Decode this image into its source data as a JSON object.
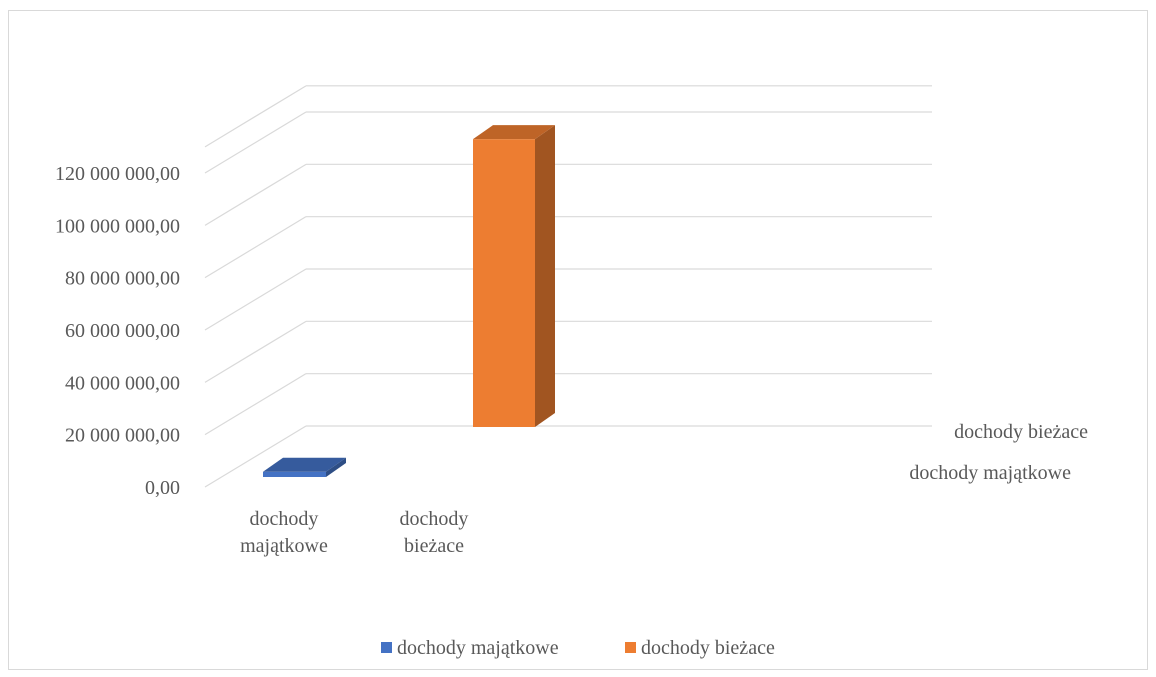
{
  "chart_data": {
    "type": "bar",
    "subtype": "3d-column",
    "categories": [
      "dochody majątkowe",
      "dochody bieżace"
    ],
    "category_label_lines": [
      [
        "dochody",
        "majątkowe"
      ],
      [
        "dochody",
        "bieżace"
      ]
    ],
    "series": [
      {
        "name": "dochody majątkowe",
        "category": "dochody majątkowe",
        "value": 2000000,
        "color": "#4472C4",
        "depth_row": 0
      },
      {
        "name": "dochody bieżace",
        "category": "dochody bieżace",
        "value": 110000000,
        "color": "#ED7D31",
        "depth_row": 1
      }
    ],
    "ylim": [
      0,
      130000000
    ],
    "y_ticks": [
      0,
      20000000,
      40000000,
      60000000,
      80000000,
      100000000,
      120000000
    ],
    "y_tick_labels": [
      "0,00",
      "20 000 000,00",
      "40 000 000,00",
      "60 000 000,00",
      "80 000 000,00",
      "100 000 000,00",
      "120 000 000,00"
    ],
    "depth_labels": [
      "dochody majątkowe",
      "dochody bieżace"
    ],
    "legend": {
      "position": "bottom",
      "items": [
        {
          "label": "dochody majątkowe",
          "color": "#4472C4"
        },
        {
          "label": "dochody bieżace",
          "color": "#ED7D31"
        }
      ]
    },
    "grid": true,
    "title": "",
    "xlabel": "",
    "ylabel": ""
  }
}
